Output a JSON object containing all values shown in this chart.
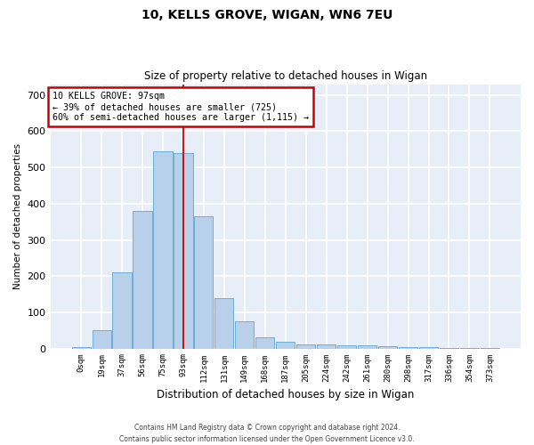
{
  "title_line1": "10, KELLS GROVE, WIGAN, WN6 7EU",
  "title_line2": "Size of property relative to detached houses in Wigan",
  "xlabel": "Distribution of detached houses by size in Wigan",
  "ylabel": "Number of detached properties",
  "footer_line1": "Contains HM Land Registry data © Crown copyright and database right 2024.",
  "footer_line2": "Contains public sector information licensed under the Open Government Licence v3.0.",
  "bar_labels": [
    "0sqm",
    "19sqm",
    "37sqm",
    "56sqm",
    "75sqm",
    "93sqm",
    "112sqm",
    "131sqm",
    "149sqm",
    "168sqm",
    "187sqm",
    "205sqm",
    "224sqm",
    "242sqm",
    "261sqm",
    "280sqm",
    "298sqm",
    "317sqm",
    "336sqm",
    "354sqm",
    "373sqm"
  ],
  "bar_values": [
    5,
    50,
    210,
    380,
    545,
    540,
    365,
    140,
    75,
    30,
    18,
    12,
    10,
    8,
    8,
    6,
    5,
    3,
    2,
    1,
    2
  ],
  "bar_color": "#b8d0ea",
  "bar_edge_color": "#6baed6",
  "background_color": "#e8eef8",
  "grid_color": "#ffffff",
  "property_label": "10 KELLS GROVE: 97sqm",
  "annotation_line1": "← 39% of detached houses are smaller (725)",
  "annotation_line2": "60% of semi-detached houses are larger (1,115) →",
  "vline_x": 5.0,
  "vline_color": "#cc0000",
  "annotation_box_color": "#ffffff",
  "annotation_box_edge": "#cc0000",
  "ylim": [
    0,
    730
  ],
  "yticks": [
    0,
    100,
    200,
    300,
    400,
    500,
    600,
    700
  ],
  "fig_width": 6.0,
  "fig_height": 5.0,
  "dpi": 100
}
